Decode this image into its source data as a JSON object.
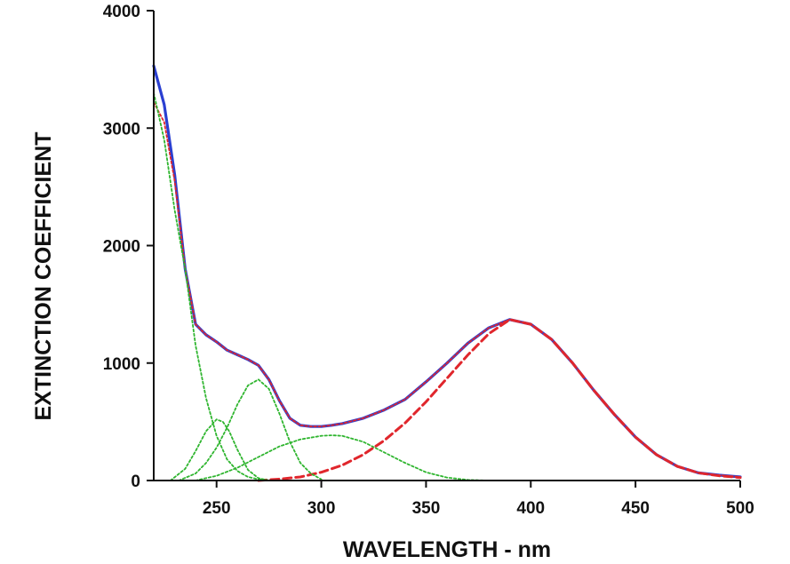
{
  "chart_data": {
    "type": "line",
    "title": "",
    "xlabel": "WAVELENGTH - nm",
    "ylabel": "EXTINCTION COEFFICIENT",
    "xlim": [
      220,
      500
    ],
    "ylim": [
      0,
      4000
    ],
    "x_ticks": [
      250,
      300,
      350,
      400,
      450,
      500
    ],
    "x_tick_labels": [
      "250",
      "300",
      "350",
      "400",
      "450",
      "500"
    ],
    "y_ticks": [
      0,
      1000,
      2000,
      3000,
      4000
    ],
    "y_tick_labels": [
      "0",
      "1000",
      "2000",
      "3000",
      "4000"
    ],
    "grid": false,
    "legend": "none",
    "series": [
      {
        "style": "solid",
        "color": "#2a3fd1",
        "x": [
          220,
          225,
          230,
          235,
          240,
          245,
          250,
          255,
          260,
          265,
          270,
          275,
          280,
          285,
          290,
          295,
          300,
          305,
          310,
          320,
          330,
          340,
          350,
          360,
          370,
          380,
          390,
          400,
          410,
          420,
          430,
          440,
          450,
          460,
          470,
          480,
          490,
          500
        ],
        "y": [
          3530,
          3200,
          2600,
          1800,
          1330,
          1240,
          1180,
          1110,
          1070,
          1030,
          980,
          860,
          680,
          530,
          470,
          460,
          460,
          470,
          485,
          530,
          600,
          690,
          840,
          1000,
          1170,
          1300,
          1370,
          1330,
          1200,
          1000,
          770,
          560,
          370,
          220,
          120,
          65,
          45,
          30
        ]
      },
      {
        "style": "dotted",
        "color": "#e0262c",
        "x": [
          220,
          225,
          230,
          235,
          240,
          245,
          250,
          255,
          260,
          265,
          270,
          275,
          280,
          285,
          290,
          295,
          300,
          305,
          310,
          320,
          330,
          340,
          350,
          360,
          370,
          380,
          390,
          400,
          410,
          420,
          430,
          440,
          450,
          460,
          470,
          480,
          490,
          500
        ],
        "y": [
          3220,
          3050,
          2550,
          1800,
          1330,
          1240,
          1180,
          1110,
          1070,
          1030,
          980,
          860,
          680,
          530,
          470,
          460,
          460,
          470,
          485,
          530,
          600,
          690,
          840,
          1000,
          1170,
          1300,
          1370,
          1330,
          1200,
          1000,
          770,
          560,
          370,
          220,
          120,
          65,
          45,
          30
        ]
      },
      {
        "style": "dashed",
        "color": "#e0262c",
        "x": [
          270,
          280,
          290,
          300,
          310,
          320,
          330,
          340,
          350,
          360,
          370,
          380,
          390,
          400,
          410,
          420,
          430,
          440,
          450,
          460,
          470,
          480,
          490,
          500
        ],
        "y": [
          0,
          12,
          30,
          70,
          130,
          220,
          340,
          490,
          670,
          870,
          1070,
          1250,
          1370,
          1330,
          1200,
          1000,
          770,
          560,
          370,
          220,
          120,
          65,
          40,
          25
        ]
      },
      {
        "style": "dotted",
        "color": "#2fb52f",
        "x": [
          220,
          225,
          230,
          235,
          240,
          245,
          250,
          255,
          260,
          265,
          270,
          275,
          280
        ],
        "y": [
          3300,
          2900,
          2300,
          1800,
          1150,
          700,
          380,
          180,
          80,
          30,
          10,
          0,
          0
        ]
      },
      {
        "style": "dotted",
        "color": "#2fb52f",
        "x": [
          228,
          235,
          240,
          245,
          250,
          253,
          256,
          260,
          265,
          270,
          275
        ],
        "y": [
          0,
          100,
          250,
          420,
          520,
          500,
          420,
          260,
          90,
          20,
          0
        ]
      },
      {
        "style": "dotted",
        "color": "#2fb52f",
        "x": [
          232,
          240,
          245,
          250,
          255,
          260,
          265,
          270,
          275,
          280,
          285,
          290,
          295,
          300
        ],
        "y": [
          0,
          60,
          150,
          280,
          450,
          650,
          810,
          860,
          780,
          570,
          330,
          150,
          60,
          10
        ]
      },
      {
        "style": "dotted",
        "color": "#2fb52f",
        "x": [
          240,
          250,
          260,
          270,
          280,
          290,
          300,
          305,
          310,
          320,
          330,
          340,
          350,
          360,
          370,
          380
        ],
        "y": [
          0,
          40,
          110,
          200,
          290,
          350,
          380,
          385,
          380,
          330,
          240,
          150,
          70,
          25,
          5,
          0
        ]
      }
    ]
  }
}
